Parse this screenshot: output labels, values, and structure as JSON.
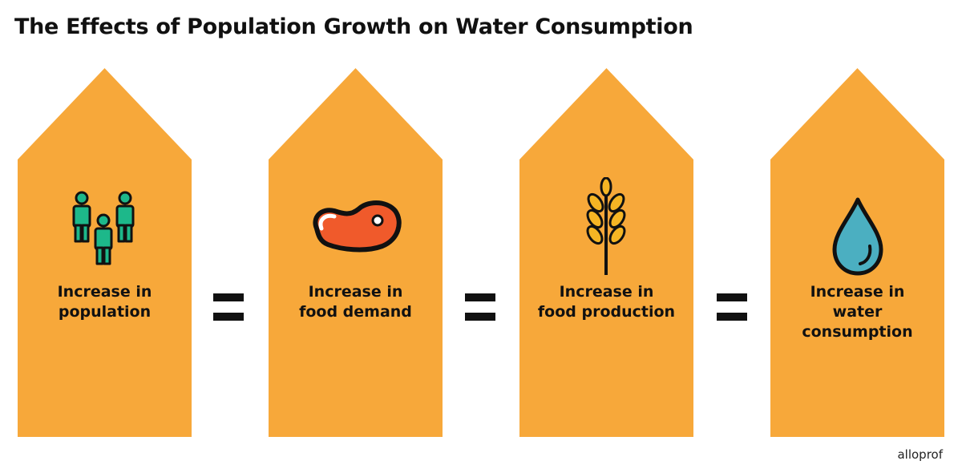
{
  "title": "The Effects of Population Growth on Water Consumption",
  "colors": {
    "pillar": "#F7A83A",
    "text": "#111111",
    "people": "#1DB88A",
    "meat": "#F05A2B",
    "wheat": "#F5B524",
    "water": "#4BAFC1"
  },
  "steps": [
    {
      "label_line1": "Increase in",
      "label_line2": "population",
      "label_line3": "",
      "icon": "people-icon"
    },
    {
      "label_line1": "Increase in",
      "label_line2": "food demand",
      "label_line3": "",
      "icon": "meat-icon"
    },
    {
      "label_line1": "Increase in",
      "label_line2": "food production",
      "label_line3": "",
      "icon": "wheat-icon"
    },
    {
      "label_line1": "Increase in",
      "label_line2": "water",
      "label_line3": "consumption",
      "icon": "water-drop-icon"
    }
  ],
  "brand": "alloprof"
}
